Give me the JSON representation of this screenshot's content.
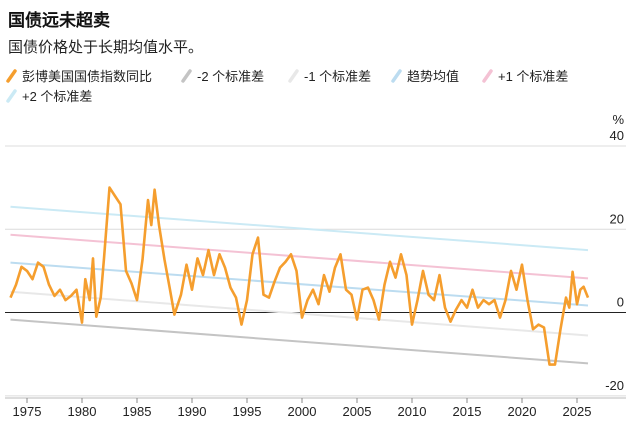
{
  "chart_data": {
    "type": "line",
    "title": "国债远未超卖",
    "subtitle": "国债价格处于长期均值水平。",
    "y_label": "%",
    "xlim": [
      1973,
      2027
    ],
    "xticks": [
      1975,
      1980,
      1985,
      1990,
      1995,
      2000,
      2005,
      2010,
      2015,
      2020,
      2025
    ],
    "ylim": [
      -21,
      40
    ],
    "yticks": [
      -20,
      0,
      20,
      40
    ],
    "grid": true,
    "series": [
      {
        "name": "彭博美国国债指数同比",
        "color": "#f59e2e",
        "x": [
          1973.5,
          1974,
          1974.5,
          1975,
          1975.5,
          1976,
          1976.5,
          1977,
          1977.5,
          1978,
          1978.5,
          1979,
          1979.5,
          1980,
          1980.3,
          1980.7,
          1981,
          1981.3,
          1981.7,
          1982,
          1982.5,
          1983,
          1983.5,
          1984,
          1984.5,
          1985,
          1985.5,
          1986,
          1986.3,
          1986.6,
          1987,
          1987.5,
          1988,
          1988.4,
          1989,
          1989.5,
          1990,
          1990.5,
          1991,
          1991.5,
          1992,
          1992.5,
          1993,
          1993.5,
          1994,
          1994.5,
          1995,
          1995.5,
          1996,
          1996.5,
          1997,
          1997.5,
          1998,
          1998.5,
          1999,
          1999.5,
          2000,
          2000.5,
          2001,
          2001.5,
          2002,
          2002.5,
          2003,
          2003.5,
          2004,
          2004.5,
          2005,
          2005.5,
          2006,
          2006.5,
          2007,
          2007.5,
          2008,
          2008.5,
          2009,
          2009.5,
          2010,
          2010.5,
          2011,
          2011.5,
          2012,
          2012.5,
          2013,
          2013.5,
          2014,
          2014.5,
          2015,
          2015.5,
          2016,
          2016.5,
          2017,
          2017.5,
          2018,
          2018.5,
          2019,
          2019.5,
          2020,
          2020.5,
          2021,
          2021.5,
          2022,
          2022.5,
          2023,
          2023.5,
          2024,
          2024.3,
          2024.6,
          2025,
          2025.3,
          2025.6,
          2026
        ],
        "values": [
          3.6,
          6.7,
          11,
          10,
          8,
          12,
          11,
          6.7,
          4,
          5.5,
          3,
          4,
          5.5,
          -2.4,
          8,
          3,
          13,
          -1,
          3.6,
          13,
          30,
          28,
          26,
          10,
          7,
          3,
          12.7,
          27,
          21,
          29.5,
          21,
          12.7,
          5.5,
          -0.5,
          4.3,
          11.5,
          5.5,
          13,
          9,
          15,
          9,
          14,
          10.8,
          6,
          3.6,
          -2.9,
          3,
          14,
          18,
          4.3,
          3.6,
          7.4,
          10.8,
          12.2,
          14,
          10,
          -1.2,
          3,
          5.5,
          2,
          9,
          5,
          10.8,
          14,
          5.5,
          4.3,
          -1.7,
          5.5,
          6,
          3,
          -1.7,
          6.7,
          12.2,
          8.4,
          14,
          9,
          -2.9,
          3,
          10,
          4.3,
          3,
          9,
          1.2,
          -2.2,
          0.7,
          3,
          1.2,
          5.5,
          1.2,
          3,
          2,
          3,
          -1.2,
          3,
          10,
          5.5,
          11.5,
          3,
          -4,
          -2.9,
          -3.6,
          -12.5,
          -12.5,
          -4,
          3.6,
          1.2,
          9.8,
          2,
          5.5,
          6.2,
          3.6
        ]
      },
      {
        "name": "-2 个标准差",
        "color": "#c4c4c4",
        "x": [
          1973.5,
          2026
        ],
        "values": [
          -1.7,
          -12.2
        ]
      },
      {
        "name": "-1 个标准差",
        "color": "#e8e8e8",
        "x": [
          1973.5,
          2026
        ],
        "values": [
          5,
          -5.5
        ]
      },
      {
        "name": "趋势均值",
        "color": "#bcdcf0",
        "x": [
          1973.5,
          2026
        ],
        "values": [
          12,
          1.7
        ]
      },
      {
        "name": "+1 个标准差",
        "color": "#f4c2d4",
        "x": [
          1973.5,
          2026
        ],
        "values": [
          18.7,
          8.2
        ]
      },
      {
        "name": "+2 个标准差",
        "color": "#cbeaf5",
        "x": [
          1973.5,
          2026
        ],
        "values": [
          25.4,
          15
        ]
      }
    ]
  }
}
